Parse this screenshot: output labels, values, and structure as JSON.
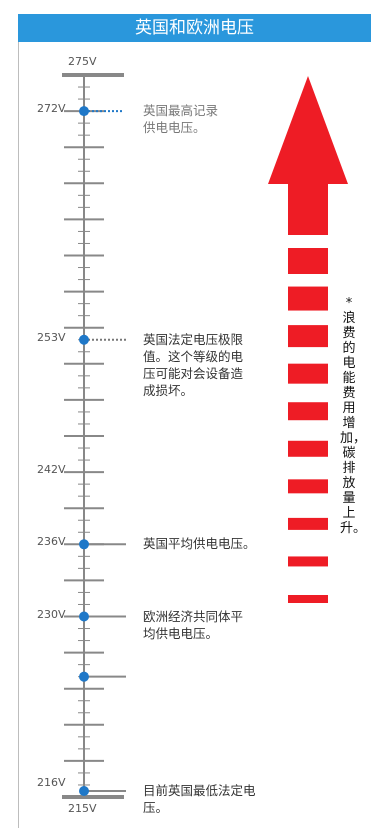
{
  "header": {
    "title": "英国和欧洲电压"
  },
  "scale": {
    "top_label": "275V",
    "bottom_label": "215V",
    "min_v": 215,
    "max_v": 275,
    "ticks": [
      {
        "v": 272,
        "label": "272V"
      },
      {
        "v": 253,
        "label": "253V"
      },
      {
        "v": 242,
        "label": "242V"
      },
      {
        "v": 236,
        "label": "236V"
      },
      {
        "v": 230,
        "label": "230V"
      },
      {
        "v": 216,
        "label": "216V"
      }
    ]
  },
  "markers": [
    {
      "v": 272,
      "style": "dotted-blue",
      "lines": [
        "英国最高记录",
        "供电电压。"
      ],
      "tone": "grey"
    },
    {
      "v": 253,
      "style": "dotted-grey",
      "lines": [
        "英国法定电压极限",
        "值。这个等级的电",
        "压可能对会设备造",
        "成损坏。"
      ],
      "tone": "dark"
    },
    {
      "v": 236,
      "style": "solid",
      "lines": [
        "英国平均供电电压。"
      ],
      "tone": "dark"
    },
    {
      "v": 230,
      "style": "solid",
      "lines": [
        "欧洲经济共同体平",
        "均供电电压。"
      ],
      "tone": "dark"
    },
    {
      "v": 225,
      "style": "solid",
      "lines": [],
      "tone": "dark"
    },
    {
      "v": 215.5,
      "style": "solid",
      "lines": [
        "目前英国最低法定电压。"
      ],
      "tone": "dark"
    }
  ],
  "arrow": {
    "color": "#ee1c25",
    "dash_count": 10
  },
  "side_note": "*浪费的电能费用增加，碳排放量上升。",
  "colors": {
    "accent": "#2a97dc",
    "dot": "#1f78c8",
    "axis": "#888888"
  }
}
